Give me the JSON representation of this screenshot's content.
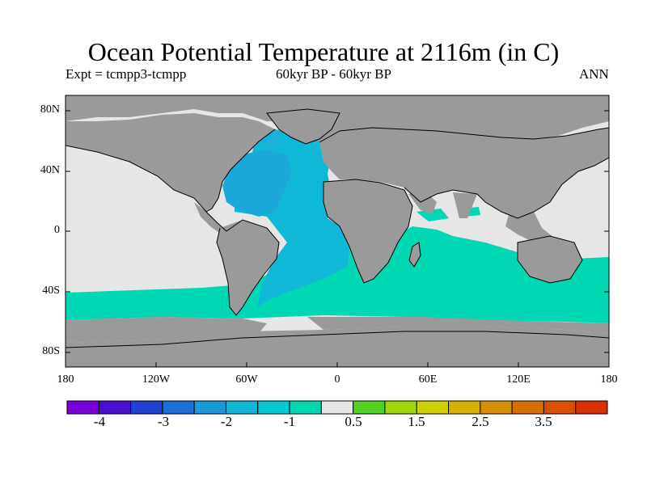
{
  "title": "Ocean Potential Temperature at 2116m (in C)",
  "subtitle_left": "Expt = tcmpp3-tcmpp",
  "subtitle_mid": "60kyr BP - 60kyr BP",
  "subtitle_right": "ANN",
  "lat_labels": [
    "80N",
    "40N",
    "0",
    "40S",
    "80S"
  ],
  "lon_labels": [
    "180",
    "120W",
    "60W",
    "0",
    "60E",
    "120E",
    "180"
  ],
  "colorbar": {
    "colors": [
      "#7a00d9",
      "#4a10d0",
      "#2040d0",
      "#1a70d8",
      "#1a98d8",
      "#10b8d8",
      "#00c8d0",
      "#00d8b4",
      "#e6e6e6",
      "#50d020",
      "#a0d808",
      "#d0d000",
      "#d8b000",
      "#d89000",
      "#d87000",
      "#d85000",
      "#d83000"
    ],
    "labels": [
      "-4",
      "-3",
      "-2",
      "-1",
      "0.5",
      "1.5",
      "2.5",
      "3.5"
    ]
  },
  "colors": {
    "land": "#9a9a9a",
    "zero_band": "#e6e6e6",
    "southern_ocean": "#00d8b4",
    "atlantic": "#10b8d8",
    "north_atlantic": "#1aa8d8"
  }
}
